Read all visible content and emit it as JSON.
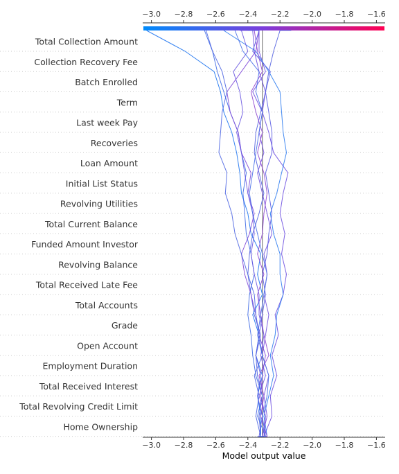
{
  "chart_data": {
    "type": "line",
    "subtype": "shap-decision-plot",
    "xlabel": "Model output value",
    "xlim": [
      -3.05,
      -1.55
    ],
    "xticks": [
      -3.0,
      -2.8,
      -2.6,
      -2.4,
      -2.2,
      -2.0,
      -1.8,
      -1.6
    ],
    "xtick_labels": [
      "−3.0",
      "−2.8",
      "−2.6",
      "−2.4",
      "−2.2",
      "−2.0",
      "−1.8",
      "−1.6"
    ],
    "base_value": -2.31,
    "colormap": {
      "low": "#008bfb",
      "mid": "#7c3ddb",
      "high": "#ff0052"
    },
    "grid": "dotted-horizontal",
    "features": [
      "Total Collection Amount",
      "Collection Recovery Fee",
      "Batch Enrolled",
      "Term",
      "Last week Pay",
      "Recoveries",
      "Loan Amount",
      "Initial List Status",
      "Revolving Utilities",
      "Total Current Balance",
      "Funded Amount Investor",
      "Revolving Balance",
      "Total Received Late Fee",
      "Total Accounts",
      "Grade",
      "Open Account",
      "Employment Duration",
      "Total Received Interest",
      "Total Revolving Credit Limit",
      "Home Ownership"
    ],
    "series": [
      {
        "color": "#5463e0",
        "values": [
          -2.31,
          -2.32,
          -2.33,
          -2.31,
          -2.34,
          -2.35,
          -2.32,
          -2.36,
          -2.38,
          -2.4,
          -2.39,
          -2.37,
          -2.33,
          -2.3,
          -2.33,
          -2.36,
          -2.35,
          -2.32,
          -2.29,
          -2.27,
          -2.24,
          -2.2,
          -2.13
        ]
      },
      {
        "color": "#6d4fe0",
        "values": [
          -2.33,
          -2.3,
          -2.25,
          -2.26,
          -2.22,
          -2.25,
          -2.21,
          -2.23,
          -2.18,
          -2.16,
          -2.19,
          -2.17,
          -2.2,
          -2.18,
          -2.15,
          -2.24,
          -2.27,
          -2.31,
          -2.29,
          -2.33,
          -2.36,
          -2.37,
          -2.38
        ]
      },
      {
        "color": "#7150df",
        "values": [
          -2.3,
          -2.31,
          -2.28,
          -2.3,
          -2.27,
          -2.31,
          -2.29,
          -2.27,
          -2.3,
          -2.28,
          -2.3,
          -2.25,
          -2.28,
          -2.31,
          -2.34,
          -2.3,
          -2.33,
          -2.31,
          -2.37,
          -2.29,
          -2.33,
          -2.33,
          -2.45
        ]
      },
      {
        "color": "#1e74f0",
        "values": [
          -2.31,
          -2.32,
          -2.32,
          -2.34,
          -2.31,
          -2.35,
          -2.33,
          -2.37,
          -2.31,
          -2.34,
          -2.32,
          -2.38,
          -2.4,
          -2.44,
          -2.45,
          -2.47,
          -2.5,
          -2.55,
          -2.57,
          -2.61,
          -2.79,
          -3.03,
          -3.03
        ]
      },
      {
        "color": "#3f6ae6",
        "values": [
          -2.32,
          -2.29,
          -2.34,
          -2.31,
          -2.35,
          -2.37,
          -2.38,
          -2.4,
          -2.39,
          -2.36,
          -2.38,
          -2.41,
          -2.42,
          -2.43,
          -2.41,
          -2.44,
          -2.46,
          -2.51,
          -2.55,
          -2.59,
          -2.62,
          -2.67,
          -2.67
        ]
      },
      {
        "color": "#2f7cf0",
        "values": [
          -2.29,
          -2.28,
          -2.3,
          -2.27,
          -2.24,
          -2.26,
          -2.23,
          -2.22,
          -2.18,
          -2.2,
          -2.2,
          -2.24,
          -2.26,
          -2.22,
          -2.19,
          -2.16,
          -2.18,
          -2.19,
          -2.2,
          -2.27,
          -2.35,
          -2.55,
          -2.55
        ]
      },
      {
        "color": "#7f4ad8",
        "values": [
          -2.31,
          -2.3,
          -2.29,
          -2.32,
          -2.31,
          -2.29,
          -2.33,
          -2.35,
          -2.38,
          -2.42,
          -2.44,
          -2.39,
          -2.36,
          -2.4,
          -2.38,
          -2.44,
          -2.46,
          -2.51,
          -2.53,
          -2.44,
          -2.35,
          -2.33,
          -2.36
        ]
      },
      {
        "color": "#8e47d0",
        "values": [
          -2.29,
          -2.28,
          -2.32,
          -2.3,
          -2.33,
          -2.27,
          -2.3,
          -2.32,
          -2.34,
          -2.3,
          -2.34,
          -2.31,
          -2.3,
          -2.28,
          -2.3,
          -2.34,
          -2.31,
          -2.35,
          -2.38,
          -2.31,
          -2.34,
          -2.36,
          -2.4
        ]
      },
      {
        "color": "#4e66e2",
        "values": [
          -2.34,
          -2.32,
          -2.35,
          -2.33,
          -2.36,
          -2.31,
          -2.33,
          -2.35,
          -2.36,
          -2.4,
          -2.44,
          -2.48,
          -2.5,
          -2.54,
          -2.53,
          -2.58,
          -2.57,
          -2.56,
          -2.53,
          -2.56,
          -2.62,
          -2.66,
          -2.66
        ]
      },
      {
        "color": "#6a58e0",
        "values": [
          -2.3,
          -2.31,
          -2.29,
          -2.33,
          -2.29,
          -2.32,
          -2.3,
          -2.33,
          -2.33,
          -2.36,
          -2.38,
          -2.36,
          -2.37,
          -2.4,
          -2.42,
          -2.44,
          -2.47,
          -2.43,
          -2.45,
          -2.49,
          -2.4,
          -2.44,
          -2.44
        ]
      },
      {
        "color": "#5a5ce2",
        "values": [
          -2.32,
          -2.33,
          -2.31,
          -2.34,
          -2.32,
          -2.35,
          -2.33,
          -2.31,
          -2.29,
          -2.31,
          -2.28,
          -2.27,
          -2.25,
          -2.27,
          -2.29,
          -2.25,
          -2.25,
          -2.27,
          -2.29,
          -2.26,
          -2.37,
          -2.33,
          -2.4
        ]
      },
      {
        "color": "#4a70e8",
        "values": [
          -2.31,
          -2.29,
          -2.31,
          -2.28,
          -2.27,
          -2.31,
          -2.34,
          -2.32,
          -2.3,
          -2.28,
          -2.31,
          -2.34,
          -2.37,
          -2.39,
          -2.37,
          -2.35,
          -2.33,
          -2.31,
          -2.35,
          -2.33,
          -2.43,
          -2.48,
          -2.48
        ]
      }
    ]
  }
}
